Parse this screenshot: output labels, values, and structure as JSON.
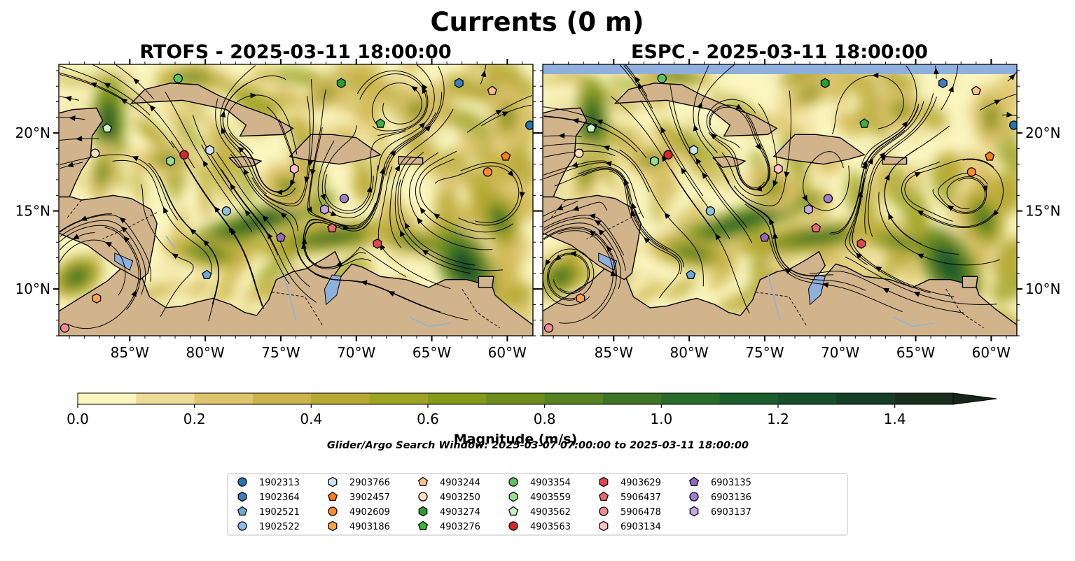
{
  "figure": {
    "title": "Currents (0 m)",
    "search_window": "Glider/Argo Search Window: 2025-03-07 07:00:00 to 2025-03-11 18:00:00"
  },
  "colors": {
    "land": "#d2b48c",
    "lakes": "#8fb0dd",
    "no_data": "#8fb0dd",
    "ramp": [
      "#fbf6c0",
      "#ecdc95",
      "#ddc56e",
      "#cbb44b",
      "#b6a833",
      "#9da324",
      "#859a1a",
      "#6d8c1c",
      "#568221",
      "#3f7424",
      "#2a6a2a",
      "#1b5e2c",
      "#16502b",
      "#163e26",
      "#1a2e1e",
      "#16241a"
    ]
  },
  "chart_data": {
    "type": "heatmap",
    "panels": [
      {
        "title": "RTOFS - 2025-03-11 18:00:00",
        "model": "RTOFS"
      },
      {
        "title": "ESPC - 2025-03-11 18:00:00",
        "model": "ESPC"
      }
    ],
    "x_ticks": [
      "85°W",
      "80°W",
      "75°W",
      "70°W",
      "65°W",
      "60°W"
    ],
    "x_tick_values": [
      -85,
      -80,
      -75,
      -70,
      -65,
      -60
    ],
    "y_ticks": [
      "20°N",
      "15°N",
      "10°N"
    ],
    "y_tick_values": [
      20,
      15,
      10
    ],
    "xlim": [
      -89.7,
      -58.3
    ],
    "ylim": [
      7.0,
      24.4
    ],
    "colorbar": {
      "label": "Magnitude (m/s)",
      "min": 0.0,
      "max": 1.5,
      "step": 0.1,
      "extend": "max",
      "ticks": [
        "0.0",
        "0.2",
        "0.4",
        "0.6",
        "0.8",
        "1.0",
        "1.2",
        "1.4"
      ],
      "tick_values": [
        0.0,
        0.2,
        0.4,
        0.6,
        0.8,
        1.0,
        1.2,
        1.4
      ]
    },
    "legend": {
      "location": "bottom-center",
      "ncol": 7,
      "entries": [
        {
          "id": "1902313",
          "marker": "circle",
          "color": "#1f77b4",
          "lon": -58.5,
          "lat": 20.5
        },
        {
          "id": "1902364",
          "marker": "hexagon",
          "color": "#3a7ec0",
          "lon": -63.2,
          "lat": 23.2
        },
        {
          "id": "1902521",
          "marker": "pentagon",
          "color": "#6aaad9",
          "lon": -79.9,
          "lat": 10.9
        },
        {
          "id": "1902522",
          "marker": "circle",
          "color": "#8cbfe6",
          "lon": -78.6,
          "lat": 15.0
        },
        {
          "id": "2903766",
          "marker": "hexagon",
          "color": "#cfe3f5",
          "lon": -79.7,
          "lat": 18.9
        },
        {
          "id": "3902457",
          "marker": "pentagon",
          "color": "#ff7f0e",
          "lon": -60.1,
          "lat": 18.5
        },
        {
          "id": "4902609",
          "marker": "circle",
          "color": "#ff8c2a",
          "lon": -61.3,
          "lat": 17.5
        },
        {
          "id": "4903186",
          "marker": "hexagon",
          "color": "#ffa04a",
          "lon": -87.2,
          "lat": 9.4
        },
        {
          "id": "4903244",
          "marker": "pentagon",
          "color": "#ffc08a",
          "lon": -61.0,
          "lat": 22.7
        },
        {
          "id": "4903250",
          "marker": "circle",
          "color": "#ffe0c0",
          "lon": -87.3,
          "lat": 18.7
        },
        {
          "id": "4903274",
          "marker": "hexagon",
          "color": "#2ca02c",
          "lon": -71.0,
          "lat": 23.2
        },
        {
          "id": "4903276",
          "marker": "pentagon",
          "color": "#3cb43c",
          "lon": -68.4,
          "lat": 20.6
        },
        {
          "id": "4903354",
          "marker": "circle",
          "color": "#5cc45c",
          "lon": -81.8,
          "lat": 23.5
        },
        {
          "id": "4903559",
          "marker": "hexagon",
          "color": "#98df8a",
          "lon": -82.3,
          "lat": 18.2
        },
        {
          "id": "4903562",
          "marker": "pentagon",
          "color": "#c8f5c0",
          "lon": -86.5,
          "lat": 20.3
        },
        {
          "id": "4903563",
          "marker": "circle",
          "color": "#d62728",
          "lon": -81.4,
          "lat": 18.6
        },
        {
          "id": "4903629",
          "marker": "hexagon",
          "color": "#e0444e",
          "lon": -68.6,
          "lat": 12.9
        },
        {
          "id": "5906437",
          "marker": "pentagon",
          "color": "#ea6a72",
          "lon": -71.6,
          "lat": 13.9
        },
        {
          "id": "5906478",
          "marker": "circle",
          "color": "#f08c94",
          "lon": -89.3,
          "lat": 7.5
        },
        {
          "id": "6903134",
          "marker": "hexagon",
          "color": "#ffc0c8",
          "lon": -74.1,
          "lat": 17.7
        },
        {
          "id": "6903135",
          "marker": "pentagon",
          "color": "#9467bd",
          "lon": -75.0,
          "lat": 13.3
        },
        {
          "id": "6903136",
          "marker": "circle",
          "color": "#a07ecb",
          "lon": -70.8,
          "lat": 15.8
        },
        {
          "id": "6903137",
          "marker": "hexagon",
          "color": "#c5a8e6",
          "lon": -72.1,
          "lat": 15.1
        }
      ]
    }
  }
}
